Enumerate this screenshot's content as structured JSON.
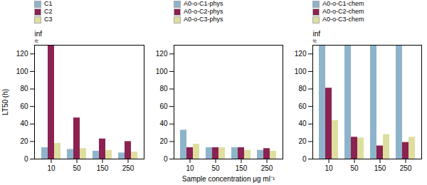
{
  "chart_data": [
    {
      "type": "bar",
      "categories": [
        "10",
        "50",
        "150",
        "250"
      ],
      "series": [
        {
          "name": "C1",
          "color": "#8eb4cb",
          "values": [
            13,
            11,
            9,
            7
          ]
        },
        {
          "name": "C2",
          "color": "#8b2252",
          "values": [
            130,
            47,
            23,
            20
          ]
        },
        {
          "name": "C3",
          "color": "#dede9e",
          "values": [
            18,
            12,
            10,
            8
          ]
        }
      ],
      "ylim": [
        0,
        130
      ],
      "yticks": [
        0,
        20,
        40,
        60,
        80,
        100,
        120
      ],
      "ylabel": "LT50 (h)",
      "annotations": [
        "inf",
        "≈"
      ],
      "legend": "top",
      "grid": false
    },
    {
      "type": "bar",
      "categories": [
        "10",
        "50",
        "150",
        "250"
      ],
      "series": [
        {
          "name": "A0-o-C1-phys",
          "color": "#8eb4cb",
          "values": [
            33,
            13,
            13,
            10
          ]
        },
        {
          "name": "A0-o-C2-phys",
          "color": "#8b2252",
          "values": [
            13,
            13,
            13,
            12
          ]
        },
        {
          "name": "A0-o-C3-phys",
          "color": "#dede9e",
          "values": [
            17,
            13,
            10,
            9
          ]
        }
      ],
      "ylim": [
        0,
        130
      ],
      "yticks": [
        0,
        20,
        40,
        60,
        80,
        100,
        120
      ],
      "xlabel": "Sample concentration μg ml⁻¹",
      "legend": "top",
      "grid": false
    },
    {
      "type": "bar",
      "categories": [
        "10",
        "50",
        "150",
        "250"
      ],
      "series": [
        {
          "name": "A0-o-C1-chem",
          "color": "#8eb4cb",
          "values": [
            130,
            130,
            130,
            130
          ]
        },
        {
          "name": "A0-o-C2-chem",
          "color": "#8b2252",
          "values": [
            81,
            25,
            15,
            19
          ]
        },
        {
          "name": "A0-o-C3-chem",
          "color": "#dede9e",
          "values": [
            44,
            24,
            28,
            25
          ]
        }
      ],
      "ylim": [
        0,
        130
      ],
      "yticks": [
        0,
        20,
        40,
        60,
        80,
        100,
        120
      ],
      "annotations": [
        "inf",
        "≈"
      ],
      "legend": "top",
      "grid": false
    }
  ]
}
